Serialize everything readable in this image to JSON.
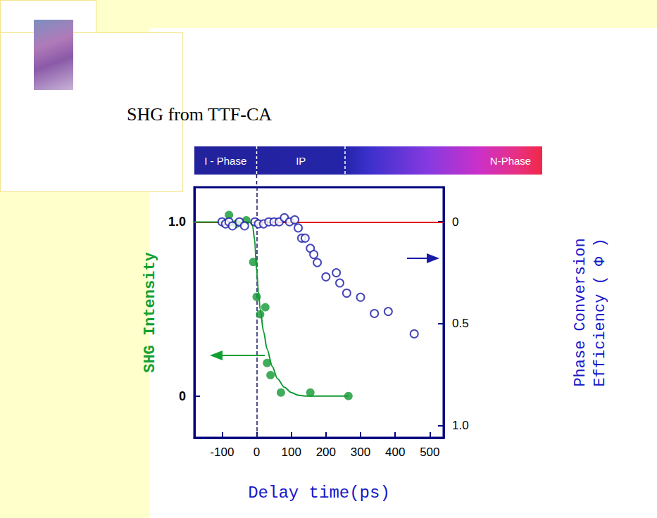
{
  "chart_data": {
    "type": "scatter",
    "title": "SHG from TTF-CA",
    "xlabel": "Delay time(ps)",
    "ylabel": "SHG Intensity",
    "y2label": "Phase Conversion\nEfficiency ( Φ )",
    "xlim": [
      -180,
      540
    ],
    "xticks": [
      -100,
      0,
      100,
      200,
      300,
      400,
      500
    ],
    "ylim": [
      -0.24,
      1.2
    ],
    "yticks": [
      0,
      {
        "value": 1,
        "label": "1.0"
      }
    ],
    "y2lim": [
      1.06,
      -0.17
    ],
    "y2ticks": [
      0,
      0.5,
      {
        "value": 1,
        "label": "1.0"
      }
    ],
    "phases": [
      "I - Phase",
      "IP",
      "N-Phase"
    ],
    "hline": 1,
    "vline": 0,
    "grid": false,
    "series": [
      {
        "type": "scatter",
        "marker": "circle",
        "color": "#119933",
        "x": [
          -80,
          -58,
          -30,
          -10,
          0,
          10,
          25,
          30,
          40,
          70,
          155,
          265
        ],
        "values": [
          1.04,
          0.99,
          1.01,
          0.77,
          0.57,
          0.47,
          0.51,
          0.19,
          0.12,
          0.02,
          0.02,
          0.0
        ]
      },
      {
        "type": "line",
        "line_style": "solid",
        "color": "#119933",
        "x": [
          -180,
          -20,
          -12,
          -6,
          0,
          5,
          10,
          20,
          30,
          45,
          60,
          80,
          100,
          120,
          140,
          265
        ],
        "values": [
          1,
          1,
          0.98,
          0.9,
          0.72,
          0.6,
          0.5,
          0.37,
          0.27,
          0.17,
          0.1,
          0.05,
          0.02,
          0.005,
          0,
          0
        ]
      },
      {
        "type": "scatter",
        "marker": "open_circle",
        "color": "#1a1aa8",
        "axis": "y2",
        "x": [
          -100,
          -90,
          -80,
          -70,
          -50,
          -35,
          -5,
          5,
          20,
          35,
          50,
          65,
          80,
          95,
          110,
          120,
          130,
          140,
          155,
          165,
          175,
          200,
          230,
          240,
          260,
          300,
          340,
          380,
          455
        ],
        "values": [
          0,
          0.01,
          0,
          0.02,
          0,
          0.02,
          0,
          0.01,
          0.01,
          0,
          0,
          0,
          -0.02,
          0,
          -0.01,
          0.03,
          0.08,
          0.08,
          0.13,
          0.16,
          0.2,
          0.27,
          0.25,
          0.3,
          0.35,
          0.37,
          0.45,
          0.44,
          0.55
        ]
      }
    ]
  }
}
